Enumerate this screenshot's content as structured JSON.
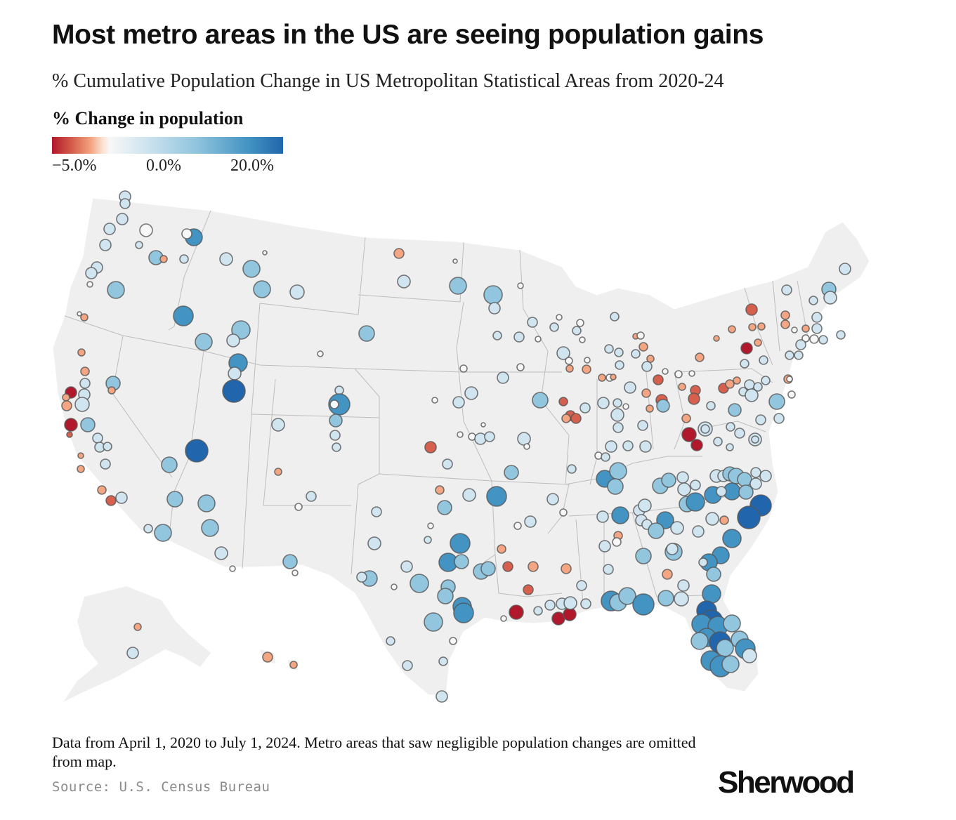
{
  "title": "Most metro areas in the US are seeing population gains",
  "subtitle": "% Cumulative Population Change in US Metropolitan Statistical Areas from 2020-24",
  "legend": {
    "title": "% Change in population",
    "ticks": [
      "−5.0%",
      "0.0%",
      "20.0%"
    ],
    "colors": [
      "#b2182b",
      "#f7f7f7",
      "#2166ac"
    ]
  },
  "note": "Data from April 1, 2020 to July 1, 2024. Metro areas that saw negligible population changes are omitted from map.",
  "source": "Source: U.S. Census Bureau",
  "brand": "Sherwood",
  "map_data": {
    "type": "proportional-symbol-map",
    "region": "United States",
    "value_scale": [
      -5.0,
      0.0,
      20.0
    ],
    "metros": [
      {
        "lon": -122.3,
        "lat": 47.6,
        "change": 5.5
      },
      {
        "lon": -122.7,
        "lat": 45.5,
        "change": 4.0
      },
      {
        "lon": -117.4,
        "lat": 47.7,
        "change": 10.0
      },
      {
        "lon": -116.2,
        "lat": 43.6,
        "change": 15.0
      },
      {
        "lon": -111.9,
        "lat": 40.8,
        "change": 12.0
      },
      {
        "lon": -115.1,
        "lat": 36.2,
        "change": 18.0
      },
      {
        "lon": -112.1,
        "lat": 33.5,
        "change": 10.0
      },
      {
        "lon": -111.0,
        "lat": 32.2,
        "change": 8.0
      },
      {
        "lon": -121.5,
        "lat": 38.6,
        "change": 3.0
      },
      {
        "lon": -122.4,
        "lat": 37.8,
        "change": -4.5
      },
      {
        "lon": -121.9,
        "lat": 37.3,
        "change": -4.0
      },
      {
        "lon": -118.2,
        "lat": 34.1,
        "change": -3.0
      },
      {
        "lon": -117.2,
        "lat": 32.7,
        "change": 2.0
      },
      {
        "lon": -105.0,
        "lat": 39.7,
        "change": 14.0
      },
      {
        "lon": -106.6,
        "lat": 35.1,
        "change": 1.5
      },
      {
        "lon": -97.7,
        "lat": 30.3,
        "change": 14.0
      },
      {
        "lon": -95.4,
        "lat": 29.8,
        "change": 12.0
      },
      {
        "lon": -96.8,
        "lat": 32.8,
        "change": 13.0
      },
      {
        "lon": -98.5,
        "lat": 29.4,
        "change": 9.0
      },
      {
        "lon": -90.1,
        "lat": 29.9,
        "change": -5.0
      },
      {
        "lon": -86.8,
        "lat": 36.2,
        "change": 10.0
      },
      {
        "lon": -84.4,
        "lat": 33.7,
        "change": 9.0
      },
      {
        "lon": -80.8,
        "lat": 35.2,
        "change": 13.0
      },
      {
        "lon": -78.6,
        "lat": 35.8,
        "change": 17.0
      },
      {
        "lon": -81.4,
        "lat": 28.5,
        "change": 14.0
      },
      {
        "lon": -82.5,
        "lat": 27.9,
        "change": 13.0
      },
      {
        "lon": -80.2,
        "lat": 25.8,
        "change": 10.0
      },
      {
        "lon": -81.7,
        "lat": 30.3,
        "change": 12.0
      },
      {
        "lon": -87.6,
        "lat": 41.9,
        "change": -3.0
      },
      {
        "lon": -83.0,
        "lat": 42.3,
        "change": -1.5
      },
      {
        "lon": -80.0,
        "lat": 40.4,
        "change": -2.5
      },
      {
        "lon": -74.0,
        "lat": 40.7,
        "change": 0.5
      },
      {
        "lon": -71.1,
        "lat": 42.4,
        "change": 1.5
      },
      {
        "lon": -77.0,
        "lat": 38.9,
        "change": 3.0
      },
      {
        "lon": -93.3,
        "lat": 44.9,
        "change": 3.5
      },
      {
        "lon": -94.6,
        "lat": 39.1,
        "change": 3.0
      },
      {
        "lon": -90.2,
        "lat": 38.6,
        "change": -1.5
      }
    ]
  }
}
